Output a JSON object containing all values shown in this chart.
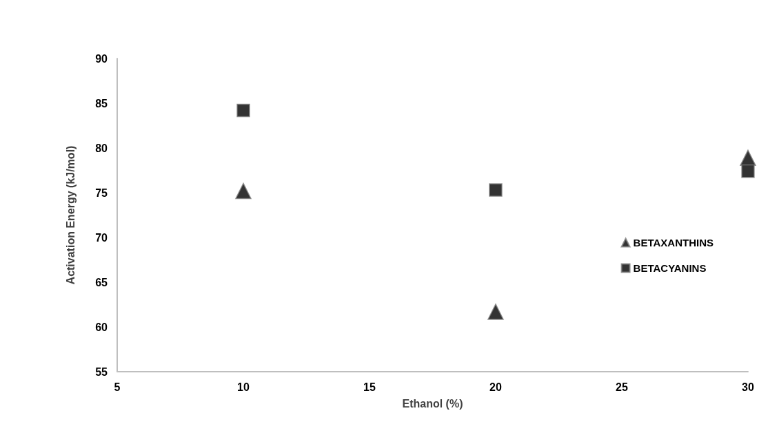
{
  "chart_data": {
    "type": "scatter",
    "xlabel": "Ethanol (%)",
    "ylabel": "Activation Energy (kJ/mol)",
    "xlim": [
      5,
      30
    ],
    "xticks": [
      5,
      10,
      15,
      20,
      25,
      30
    ],
    "ylim": [
      55,
      90
    ],
    "yticks": [
      55,
      60,
      65,
      70,
      75,
      80,
      85,
      90
    ],
    "grid": false,
    "legend": "right",
    "series": [
      {
        "name": "BETAXANTHINS",
        "color": "#000000",
        "marker": "triangle",
        "x": [
          10,
          20,
          30
        ],
        "values": [
          75.2,
          61.7,
          78.9
        ]
      },
      {
        "name": "BETACYANINS",
        "color": "#000000",
        "marker": "square",
        "x": [
          10,
          20,
          30
        ],
        "values": [
          84.2,
          75.3,
          77.4
        ]
      }
    ]
  }
}
